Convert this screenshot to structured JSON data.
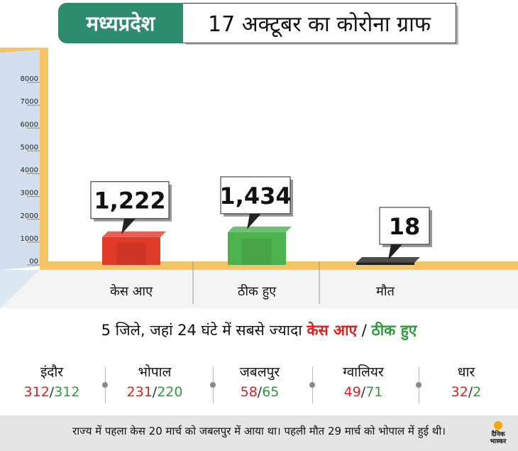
{
  "header": {
    "state": "मध्यप्रदेश",
    "title": "17 अक्टूबर का कोरोना ग्राफ"
  },
  "chart_data": {
    "type": "bar",
    "categories": [
      "केस आए",
      "ठीक हुए",
      "मौत"
    ],
    "values": [
      1222,
      1434,
      18
    ],
    "value_labels": [
      "1,222",
      "1,434",
      "18"
    ],
    "bar_colors": [
      "#e03a2a",
      "#4cb24e",
      "#222222"
    ],
    "y_ticks": [
      "00",
      "1000",
      "2000",
      "3000",
      "4000",
      "5000",
      "6000",
      "7000",
      "8000"
    ],
    "ylim": [
      0,
      8000
    ],
    "grid": false
  },
  "districts": {
    "heading_prefix": "5 जिले, जहां 24 घंटे में सबसे ज्यादा ",
    "heading_cases": "केस आए",
    "heading_sep": " / ",
    "heading_recovered": "ठीक हुए",
    "items": [
      {
        "name": "इंदौर",
        "cases": "312",
        "recovered": "312"
      },
      {
        "name": "भोपाल",
        "cases": "231",
        "recovered": "220"
      },
      {
        "name": "जबलपुर",
        "cases": "58",
        "recovered": "65"
      },
      {
        "name": "ग्वालियर",
        "cases": "49",
        "recovered": "71"
      },
      {
        "name": "धार",
        "cases": "32",
        "recovered": "2"
      }
    ]
  },
  "footer": {
    "text": "राज्य में पहला केस 20 मार्च को जबलपुर में आया था। पहली मौत 29 मार्च को भोपाल में हुई थी।",
    "logo_line1": "दैनिक",
    "logo_line2": "भास्कर"
  },
  "colors": {
    "state_box": "#2e8c6e",
    "cases": "#e02020",
    "recovered": "#2e9c3e",
    "floor": "#f5c465",
    "wall": "#d6e2ee"
  }
}
